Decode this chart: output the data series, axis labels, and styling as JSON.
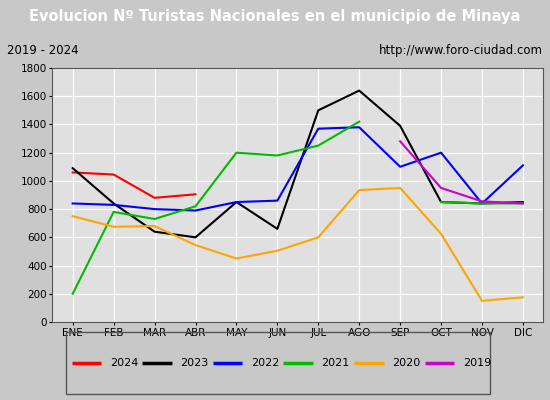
{
  "title": "Evolucion Nº Turistas Nacionales en el municipio de Minaya",
  "subtitle_left": "2019 - 2024",
  "subtitle_right": "http://www.foro-ciudad.com",
  "months": [
    "ENE",
    "FEB",
    "MAR",
    "ABR",
    "MAY",
    "JUN",
    "JUL",
    "AGO",
    "SEP",
    "OCT",
    "NOV",
    "DIC"
  ],
  "series_2024": {
    "x": [
      0,
      1,
      2,
      3
    ],
    "y": [
      1060,
      1045,
      880,
      905
    ]
  },
  "series_2023": {
    "x": [
      0,
      1,
      2,
      3,
      4,
      5,
      6,
      7,
      8,
      9,
      10,
      11
    ],
    "y": [
      1090,
      840,
      640,
      600,
      850,
      660,
      1500,
      1640,
      1390,
      850,
      840,
      850
    ]
  },
  "series_2022": {
    "x": [
      0,
      1,
      2,
      3,
      4,
      5,
      6,
      7,
      8,
      9,
      10,
      11
    ],
    "y": [
      840,
      830,
      800,
      790,
      850,
      860,
      1370,
      1380,
      1100,
      1200,
      840,
      1110
    ]
  },
  "series_2021_a": {
    "x": [
      0,
      1,
      2,
      3,
      4,
      5,
      6,
      7
    ],
    "y": [
      200,
      780,
      730,
      820,
      1200,
      1180,
      1250,
      1420
    ]
  },
  "series_2021_b": {
    "x": [
      9,
      10,
      11
    ],
    "y": [
      850,
      840,
      840
    ]
  },
  "series_2020": {
    "x": [
      0,
      1,
      2,
      3,
      4,
      5,
      6,
      7,
      8,
      9,
      10,
      11
    ],
    "y": [
      750,
      675,
      680,
      545,
      450,
      505,
      600,
      935,
      950,
      625,
      150,
      175
    ]
  },
  "series_2019": {
    "x": [
      8,
      9,
      10,
      11
    ],
    "y": [
      1280,
      950,
      855,
      840
    ]
  },
  "colors": {
    "2024": "#ff0000",
    "2023": "#000000",
    "2022": "#0000ff",
    "2021": "#00bb00",
    "2020": "#ffa500",
    "2019": "#cc00cc"
  },
  "ylim": [
    0,
    1800
  ],
  "yticks": [
    0,
    200,
    400,
    600,
    800,
    1000,
    1200,
    1400,
    1600,
    1800
  ],
  "title_bg": "#4472c4",
  "title_color": "#ffffff",
  "subtitle_bg": "#e8e8e8",
  "plot_bg": "#e0e0e0",
  "grid_color": "#ffffff",
  "border_color": "#555555",
  "fig_bg": "#c8c8c8"
}
